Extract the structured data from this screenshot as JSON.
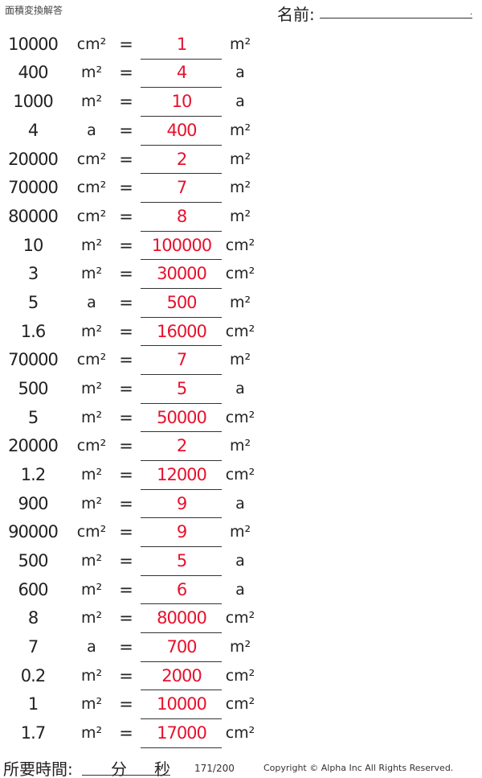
{
  "header": {
    "title": "面積変換解答",
    "name_label": "名前:"
  },
  "rows": [
    {
      "value": "10000",
      "from": "cm²",
      "answer": "1",
      "to": "m²"
    },
    {
      "value": "400",
      "from": "m²",
      "answer": "4",
      "to": "a"
    },
    {
      "value": "1000",
      "from": "m²",
      "answer": "10",
      "to": "a"
    },
    {
      "value": "4",
      "from": "a",
      "answer": "400",
      "to": "m²"
    },
    {
      "value": "20000",
      "from": "cm²",
      "answer": "2",
      "to": "m²"
    },
    {
      "value": "70000",
      "from": "cm²",
      "answer": "7",
      "to": "m²"
    },
    {
      "value": "80000",
      "from": "cm²",
      "answer": "8",
      "to": "m²"
    },
    {
      "value": "10",
      "from": "m²",
      "answer": "100000",
      "to": "cm²"
    },
    {
      "value": "3",
      "from": "m²",
      "answer": "30000",
      "to": "cm²"
    },
    {
      "value": "5",
      "from": "a",
      "answer": "500",
      "to": "m²"
    },
    {
      "value": "1.6",
      "from": "m²",
      "answer": "16000",
      "to": "cm²"
    },
    {
      "value": "70000",
      "from": "cm²",
      "answer": "7",
      "to": "m²"
    },
    {
      "value": "500",
      "from": "m²",
      "answer": "5",
      "to": "a"
    },
    {
      "value": "5",
      "from": "m²",
      "answer": "50000",
      "to": "cm²"
    },
    {
      "value": "20000",
      "from": "cm²",
      "answer": "2",
      "to": "m²"
    },
    {
      "value": "1.2",
      "from": "m²",
      "answer": "12000",
      "to": "cm²"
    },
    {
      "value": "900",
      "from": "m²",
      "answer": "9",
      "to": "a"
    },
    {
      "value": "90000",
      "from": "cm²",
      "answer": "9",
      "to": "m²"
    },
    {
      "value": "500",
      "from": "m²",
      "answer": "5",
      "to": "a"
    },
    {
      "value": "600",
      "from": "m²",
      "answer": "6",
      "to": "a"
    },
    {
      "value": "8",
      "from": "m²",
      "answer": "80000",
      "to": "cm²"
    },
    {
      "value": "7",
      "from": "a",
      "answer": "700",
      "to": "m²"
    },
    {
      "value": "0.2",
      "from": "m²",
      "answer": "2000",
      "to": "cm²"
    },
    {
      "value": "1",
      "from": "m²",
      "answer": "10000",
      "to": "cm²"
    },
    {
      "value": "1.7",
      "from": "m²",
      "answer": "17000",
      "to": "cm²"
    }
  ],
  "equals": "=",
  "footer": {
    "time_label": "所要時間:",
    "minutes": "分",
    "seconds": "秒",
    "page": "171/200",
    "copyright": "Copyright © Alpha Inc All Rights Reserved."
  },
  "colors": {
    "answer": "#e8112d"
  }
}
